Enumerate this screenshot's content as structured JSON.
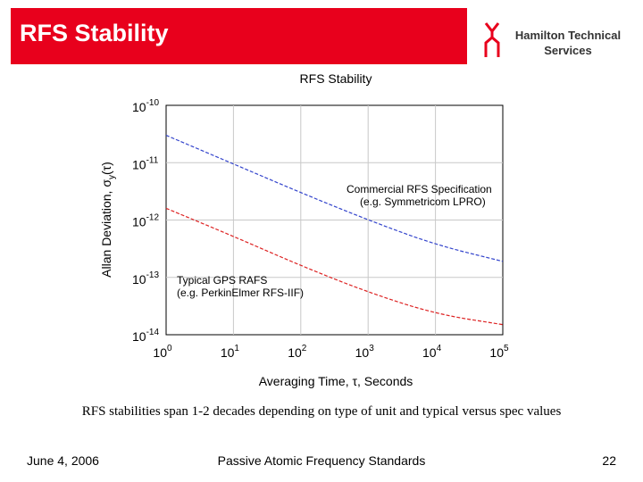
{
  "slide": {
    "title": "RFS Stability",
    "logo_text_line1": "Hamilton Technical",
    "logo_text_line2": "Services",
    "caption": "RFS stabilities span 1-2 decades depending on type of unit and typical versus spec values",
    "footer_date": "June 4, 2006",
    "footer_center": "Passive Atomic Frequency Standards",
    "page_number": "22"
  },
  "colors": {
    "title_bar": "#e8001c",
    "series_commercial": "#3344cc",
    "series_gps": "#dd2222",
    "grid": "#c8c8c8"
  },
  "chart_data": {
    "type": "line",
    "title": "RFS Stability",
    "xlabel": "Averaging Time, τ, Seconds",
    "ylabel": "Allan Deviation, σy(τ)",
    "x_scale": "log",
    "y_scale": "log",
    "xlim": [
      1,
      100000
    ],
    "ylim": [
      1e-14,
      1e-10
    ],
    "x_ticks": [
      1,
      10,
      100,
      1000,
      10000,
      100000
    ],
    "x_tick_exponents": [
      "0",
      "1",
      "2",
      "3",
      "4",
      "5"
    ],
    "y_ticks": [
      1e-10,
      1e-11,
      1e-12,
      1e-13,
      1e-14
    ],
    "y_tick_exponents": [
      "-10",
      "-11",
      "-12",
      "-13",
      "-14"
    ],
    "tick_base": "10",
    "grid": true,
    "series": [
      {
        "name": "Commercial RFS Specification",
        "label_line1": "Commercial RFS Specification",
        "label_line2": "(e.g. Symmetricom LPRO)",
        "x": [
          1,
          10,
          100,
          1000,
          10000,
          100000
        ],
        "y": [
          3e-11,
          9.5e-12,
          3e-12,
          1e-12,
          3.7e-13,
          1.9e-13
        ]
      },
      {
        "name": "Typical GPS RAFS",
        "label_line1": "Typical GPS RAFS",
        "label_line2": "(e.g. PerkinElmer RFS-IIF)",
        "x": [
          1,
          10,
          100,
          1000,
          10000,
          100000
        ],
        "y": [
          1.6e-12,
          5.2e-13,
          1.6e-13,
          5.5e-14,
          2.3e-14,
          1.5e-14
        ]
      }
    ]
  }
}
